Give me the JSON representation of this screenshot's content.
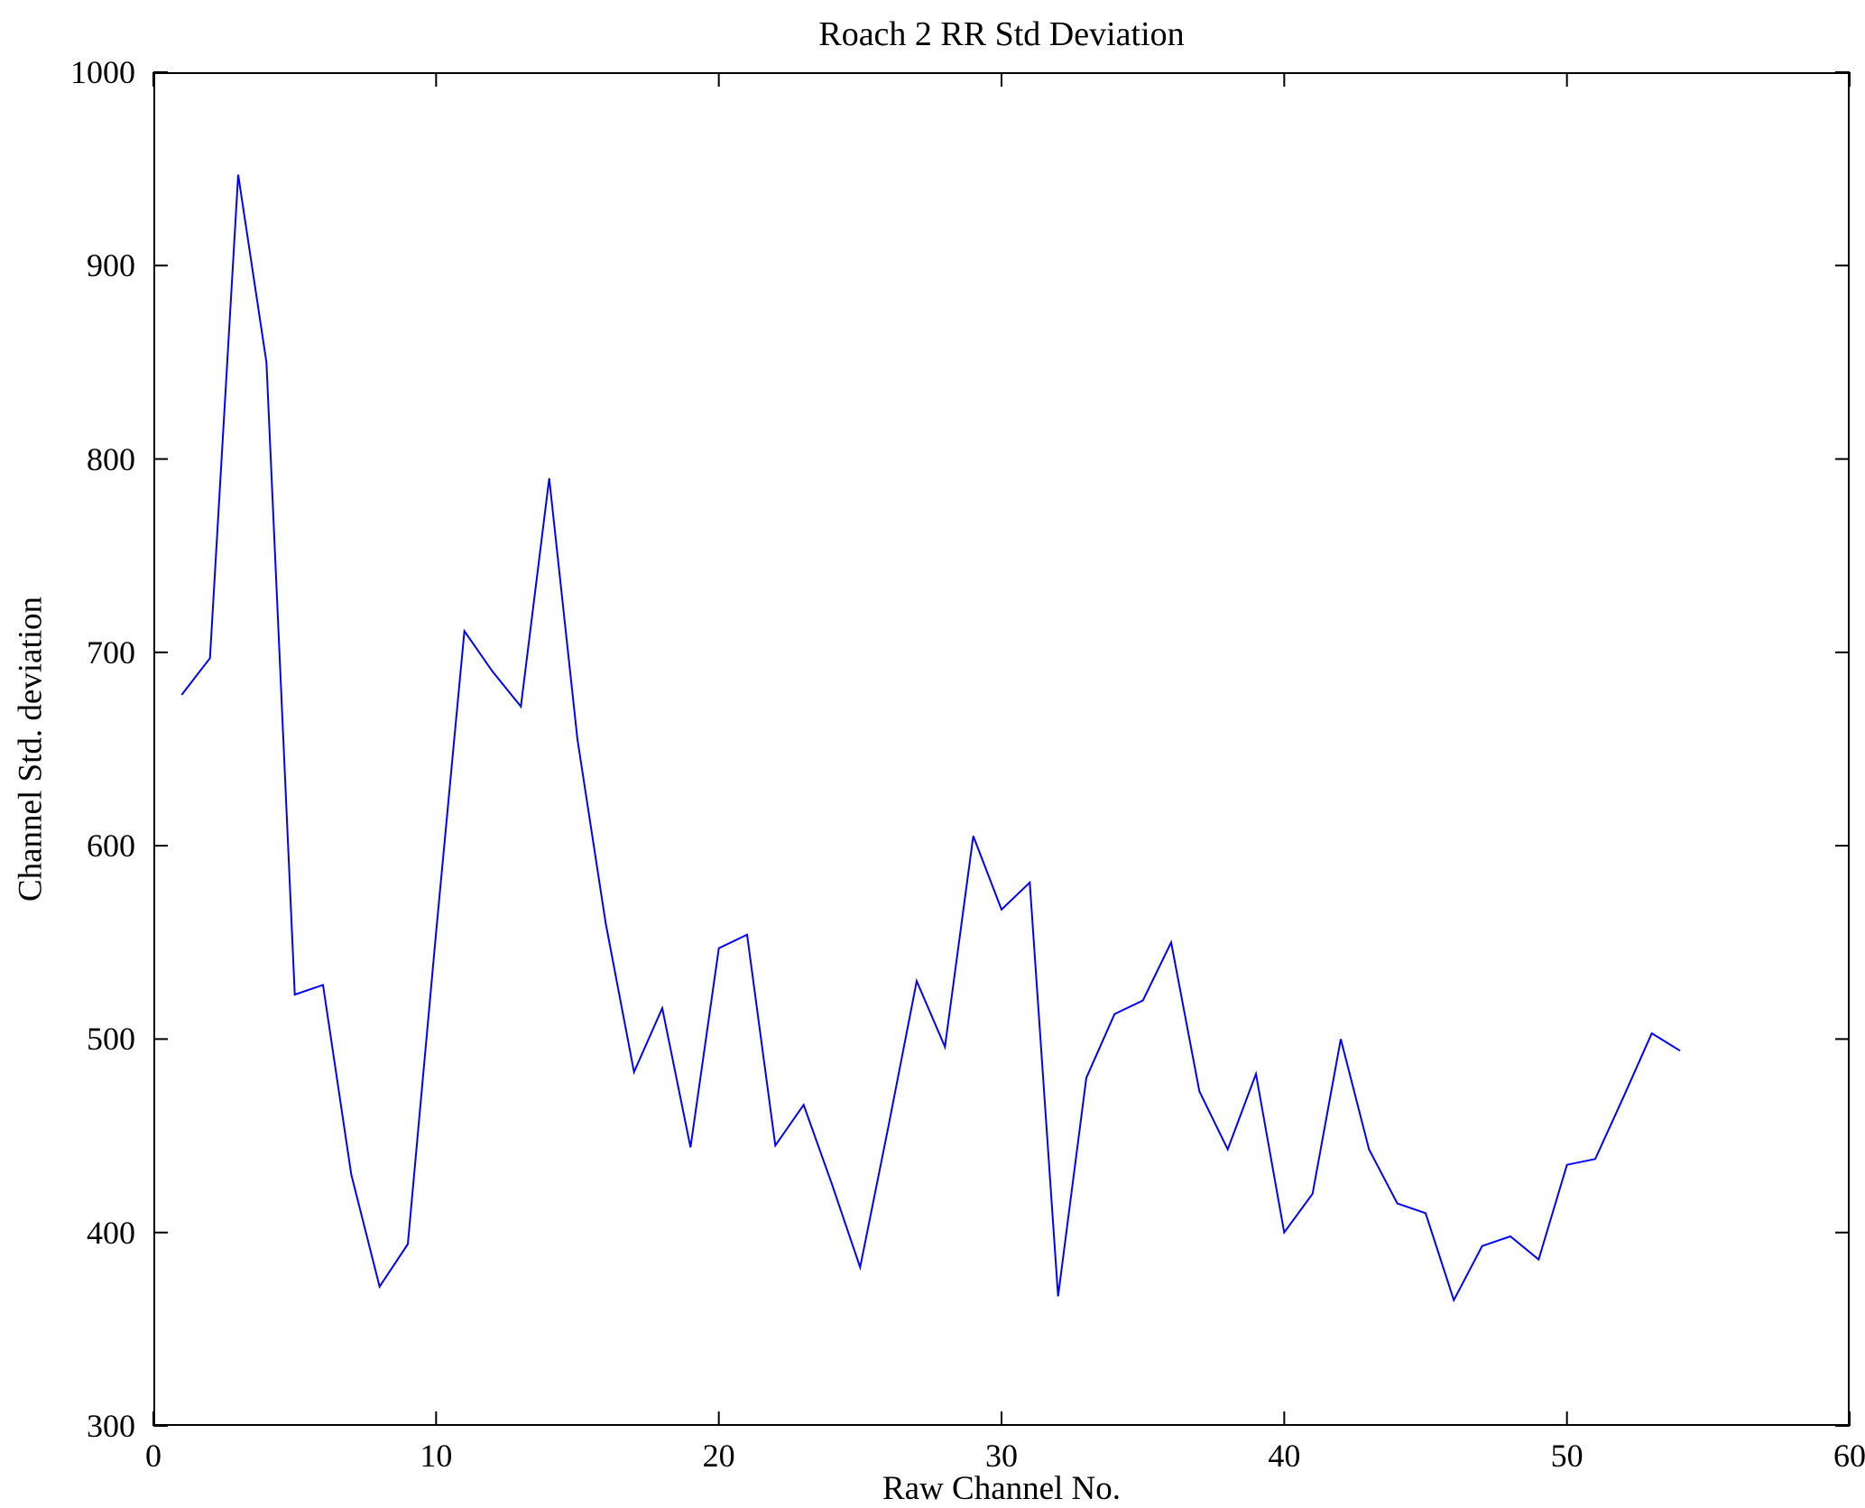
{
  "chart_data": {
    "type": "line",
    "title": "Roach 2 RR Std Deviation",
    "xlabel": "Raw Channel No.",
    "ylabel": "Channel Std. deviation",
    "xlim": [
      0,
      60
    ],
    "ylim": [
      300,
      1000
    ],
    "xticks": [
      0,
      10,
      20,
      30,
      40,
      50,
      60
    ],
    "yticks": [
      300,
      400,
      500,
      600,
      700,
      800,
      900,
      1000
    ],
    "grid": false,
    "legend": "none",
    "line_color": "#0000FF",
    "axis_color": "#000000",
    "x": [
      1,
      2,
      3,
      4,
      5,
      6,
      7,
      8,
      9,
      10,
      11,
      12,
      13,
      14,
      15,
      16,
      17,
      18,
      19,
      20,
      21,
      22,
      23,
      24,
      25,
      26,
      27,
      28,
      29,
      30,
      31,
      32,
      33,
      34,
      35,
      36,
      37,
      38,
      39,
      40,
      41,
      42,
      43,
      44,
      45,
      46,
      47,
      48,
      49,
      50,
      51,
      52,
      53,
      54
    ],
    "values": [
      678,
      697,
      947,
      850,
      523,
      528,
      430,
      372,
      394,
      555,
      711,
      690,
      672,
      790,
      655,
      560,
      483,
      516,
      444,
      547,
      554,
      445,
      466,
      425,
      382,
      455,
      530,
      496,
      605,
      567,
      581,
      367,
      480,
      513,
      520,
      550,
      473,
      443,
      482,
      400,
      420,
      500,
      443,
      415,
      410,
      365,
      393,
      398,
      386,
      435,
      438,
      470,
      503,
      494
    ]
  }
}
